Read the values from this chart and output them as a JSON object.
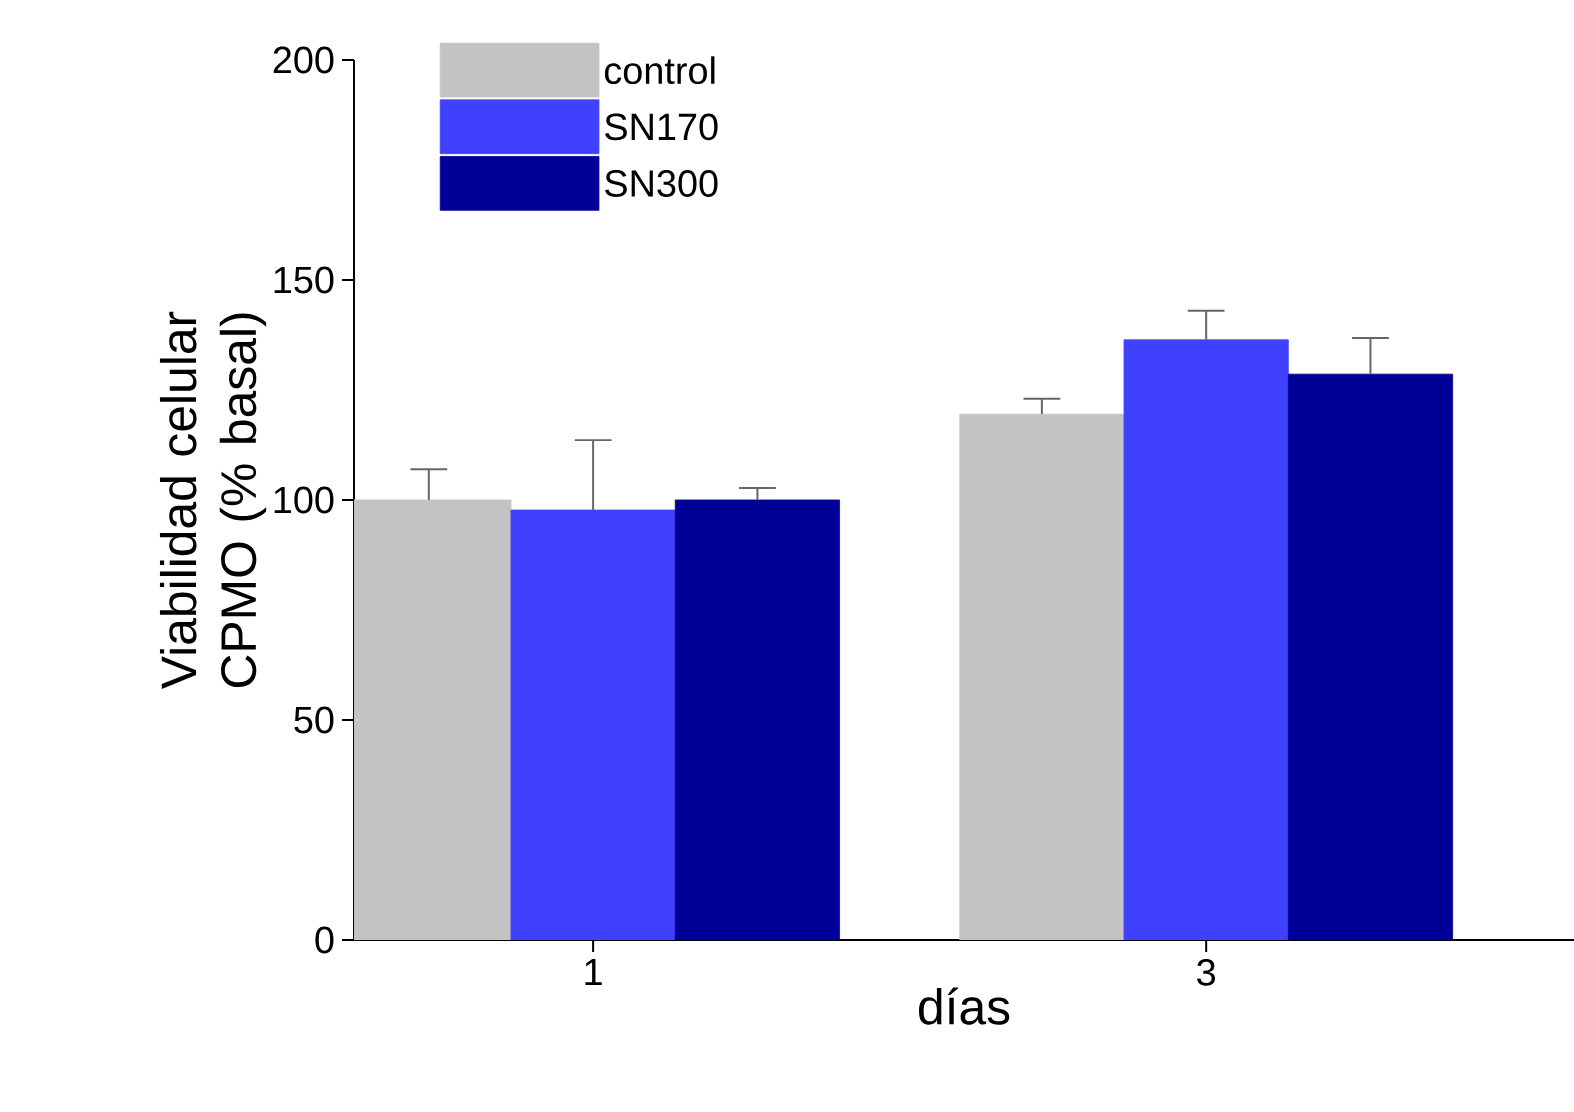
{
  "chart_data": {
    "type": "bar",
    "xlabel": "días",
    "ylabel": "Viabilidad celular CPMO (% basal)",
    "categories": [
      "1",
      "3"
    ],
    "series": [
      {
        "name": "control",
        "color": "#c3c3c3",
        "values": [
          100,
          119.5
        ],
        "errors": [
          [
            100,
            107
          ],
          [
            119.5,
            123
          ]
        ]
      },
      {
        "name": "SN170",
        "color": "#4040ff",
        "values": [
          97.7,
          136.4
        ],
        "errors": [
          [
            97.7,
            113.6
          ],
          [
            136.4,
            143
          ]
        ]
      },
      {
        "name": "SN300",
        "color": "#000099",
        "values": [
          100,
          128.6
        ],
        "errors": [
          [
            100,
            102.7
          ],
          [
            128.6,
            136.8
          ]
        ]
      }
    ],
    "ylim": [
      0,
      200
    ],
    "yticks": [
      0,
      50,
      100,
      150,
      200
    ],
    "legend": "top left",
    "grid": false
  }
}
